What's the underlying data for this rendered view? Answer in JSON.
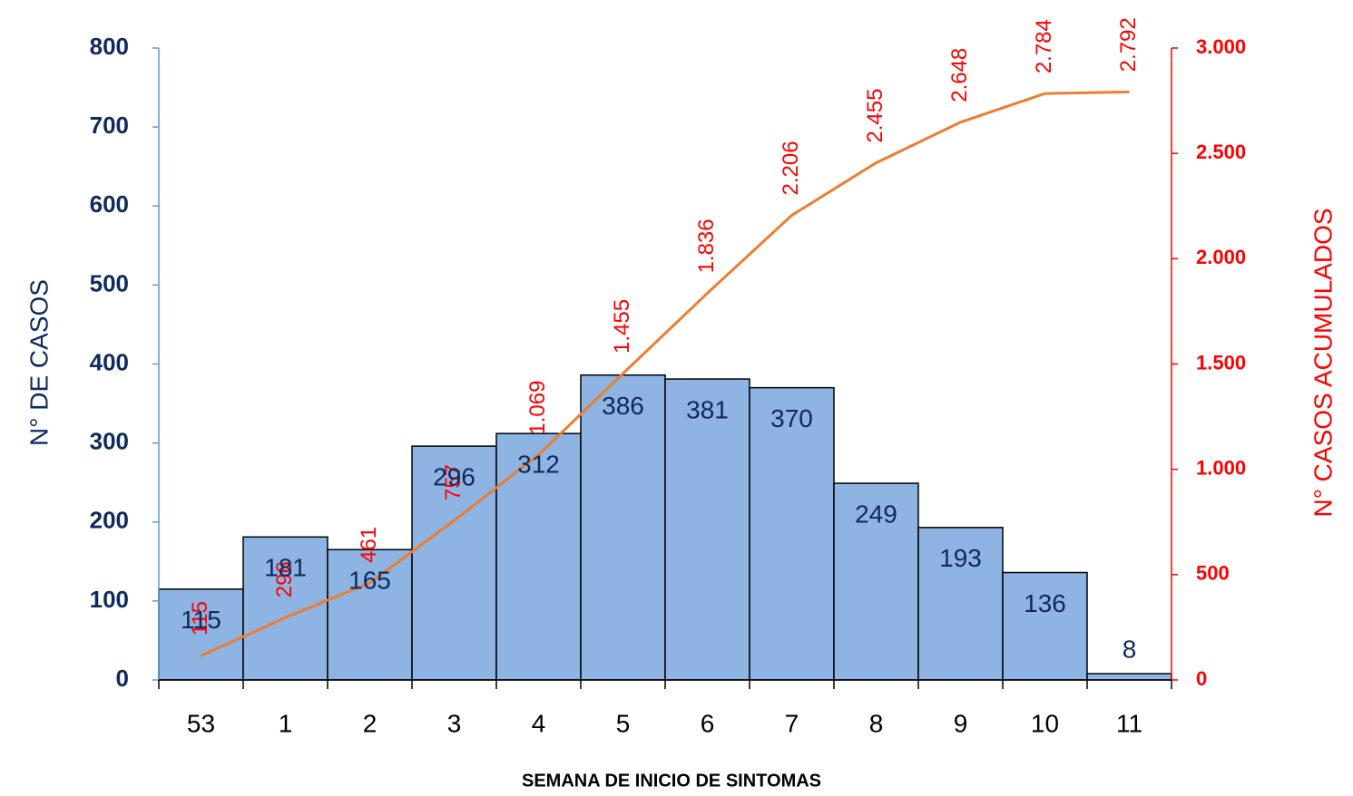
{
  "chart_data": {
    "type": "bar",
    "x_label": "SEMANA DE INICIO DE SINTOMAS",
    "y_label": "N° DE CASOS",
    "y2_label": "N° CASOS ACUMULADOS",
    "categories": [
      "53",
      "1",
      "2",
      "3",
      "4",
      "5",
      "6",
      "7",
      "8",
      "9",
      "10",
      "11"
    ],
    "series": [
      {
        "type": "bar",
        "color": "#8db4e2",
        "values": [
          115,
          181,
          165,
          296,
          312,
          386,
          381,
          370,
          249,
          193,
          136,
          8
        ]
      },
      {
        "type": "line",
        "axis": "y2",
        "color": "#ed7d31",
        "values": [
          115,
          296,
          461,
          757,
          1069,
          1455,
          1836,
          2206,
          2455,
          2648,
          2784,
          2792
        ],
        "value_labels": [
          "115",
          "296",
          "461",
          "757",
          "1.069",
          "1.455",
          "1.836",
          "2.206",
          "2.455",
          "2.648",
          "2.784",
          "2.792"
        ]
      }
    ],
    "ylim": [
      0,
      800
    ],
    "yticks": [
      0,
      100,
      200,
      300,
      400,
      500,
      600,
      700,
      800
    ],
    "y2lim": [
      0,
      3000
    ],
    "y2ticks": [
      0,
      500,
      {
        "value": 1000,
        "label": "1.000"
      },
      {
        "value": 1500,
        "label": "1.500"
      },
      {
        "value": 2000,
        "label": "2.000"
      },
      {
        "value": 2500,
        "label": "2.500"
      },
      {
        "value": 3000,
        "label": "3.000"
      }
    ]
  }
}
